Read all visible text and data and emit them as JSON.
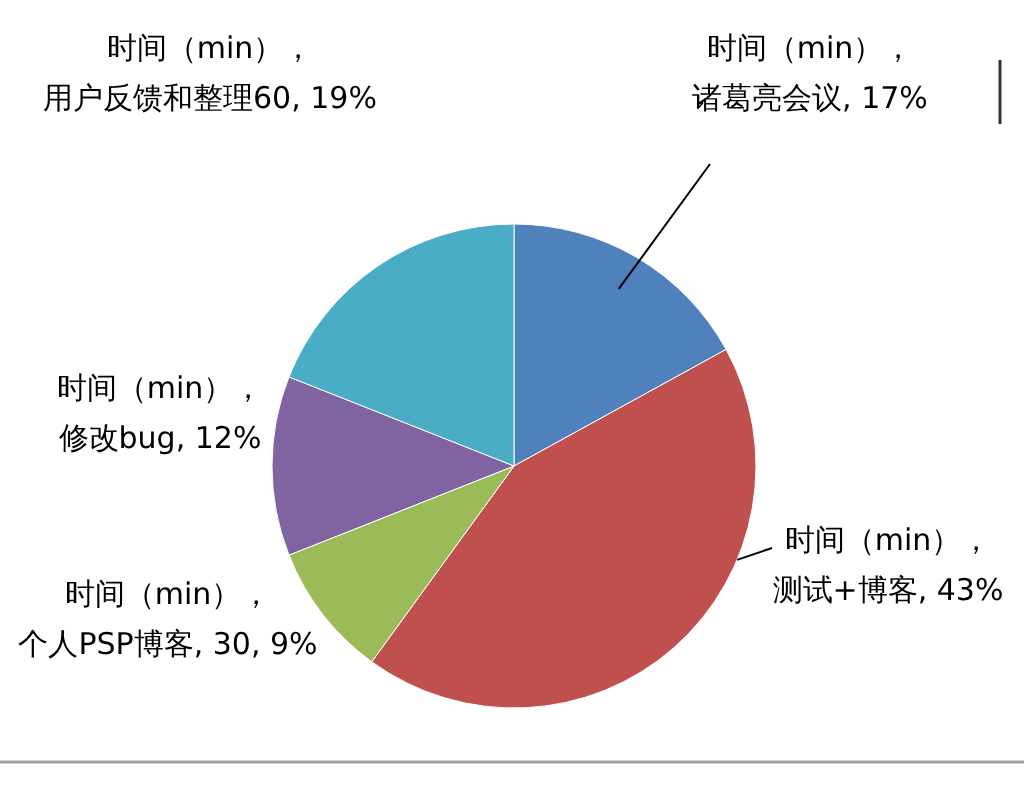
{
  "chart_data": {
    "type": "pie",
    "categories": [
      "诸葛亮会议",
      "测试+博客",
      "个人PSP博客",
      "修改bug",
      "用户反馈和整理60"
    ],
    "series": [
      {
        "name": "时间（min），",
        "values": [
          17,
          43,
          9,
          12,
          19
        ],
        "value_labels": [
          "17%",
          "43%",
          "30, 9%",
          "12%",
          "19%"
        ]
      }
    ],
    "colors": [
      "#4f81bd",
      "#c0504d",
      "#9bbb59",
      "#8064a2",
      "#4bacc6"
    ],
    "legend": false
  }
}
